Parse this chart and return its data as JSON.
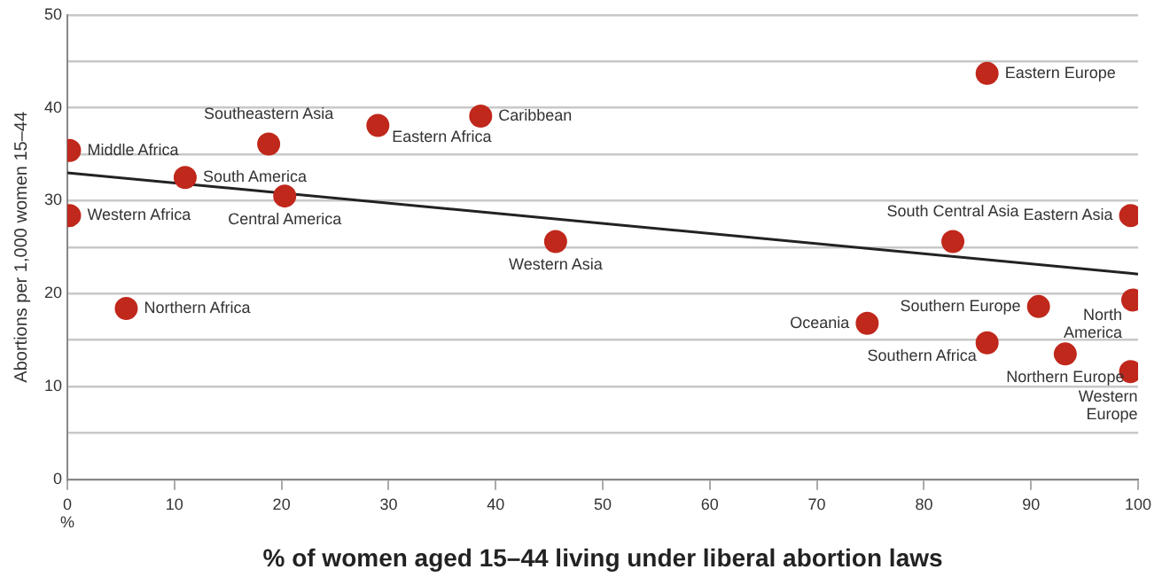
{
  "chart_data": {
    "type": "scatter",
    "xlabel": "% of women aged 15–44 living under liberal abortion laws",
    "ylabel": "Abortions per 1,000 women 15–44",
    "xlim": [
      0,
      100
    ],
    "xticks": [
      0,
      10,
      20,
      30,
      40,
      50,
      60,
      70,
      80,
      90,
      100
    ],
    "ylim": [
      0,
      50
    ],
    "yticks": [
      0,
      {
        "value": 5,
        "label": null
      },
      10,
      {
        "value": 15,
        "label": null
      },
      20,
      {
        "value": 25,
        "label": null
      },
      30,
      {
        "value": 35,
        "label": null
      },
      40,
      {
        "value": 45,
        "label": null
      },
      50
    ],
    "grid": "y",
    "legend": false,
    "marker": "circle",
    "series": [
      {
        "color": "#c0281c",
        "x": [
          0.2,
          0.2,
          11,
          18.8,
          20.3,
          29,
          38.6,
          45.6,
          5.5,
          85.9,
          82.7,
          99.3,
          99.5,
          90.7,
          74.7,
          85.9,
          93.2,
          99.3
        ],
        "values": [
          35.4,
          28.4,
          32.5,
          36.1,
          30.5,
          38.1,
          39.1,
          25.6,
          18.4,
          43.7,
          25.6,
          28.4,
          19.3,
          18.6,
          16.8,
          14.7,
          13.5,
          11.6
        ]
      },
      {
        "type": "line",
        "marker": "none",
        "color": "#222222",
        "x": [
          0,
          100
        ],
        "values": [
          33,
          22.1
        ]
      }
    ],
    "annotations": [
      {
        "text": "Middle Africa",
        "x": 0.2,
        "y": 35.4
      },
      {
        "text": "Western Africa",
        "x": 0.2,
        "y": 28.4
      },
      {
        "text": "South America",
        "x": 11,
        "y": 32.5
      },
      {
        "text": "Southeastern Asia",
        "x": 18.8,
        "y": 36.1
      },
      {
        "text": "Central America",
        "x": 20.3,
        "y": 30.5
      },
      {
        "text": "Eastern Africa",
        "x": 29,
        "y": 38.1
      },
      {
        "text": "Caribbean",
        "x": 38.6,
        "y": 39.1
      },
      {
        "text": "Western Asia",
        "x": 45.6,
        "y": 25.6
      },
      {
        "text": "Northern Africa",
        "x": 5.5,
        "y": 18.4
      },
      {
        "text": "Eastern Europe",
        "x": 85.9,
        "y": 43.7
      },
      {
        "text": "South Central Asia",
        "x": 82.7,
        "y": 25.6
      },
      {
        "text": "Eastern Asia",
        "x": 99.3,
        "y": 28.4
      },
      {
        "text": "North America",
        "x": 99.5,
        "y": 19.3
      },
      {
        "text": "Southern Europe",
        "x": 90.7,
        "y": 18.6
      },
      {
        "text": "Oceania",
        "x": 74.7,
        "y": 16.8
      },
      {
        "text": "Southern Africa",
        "x": 85.9,
        "y": 14.7
      },
      {
        "text": "Northern Europe",
        "x": 93.2,
        "y": 13.5
      },
      {
        "text": "Western Europe",
        "x": 99.3,
        "y": 11.6
      },
      "%"
    ]
  }
}
